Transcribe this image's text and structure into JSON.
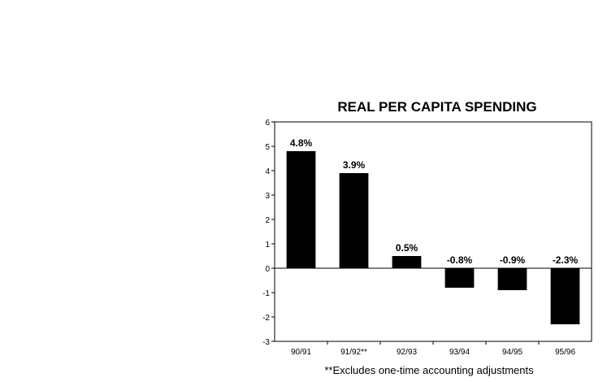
{
  "chart_data": {
    "type": "bar",
    "title": "REAL PER CAPITA SPENDING",
    "categories": [
      "90/91",
      "91/92**",
      "92/93",
      "93/94",
      "94/95",
      "95/96"
    ],
    "values": [
      4.8,
      3.9,
      0.5,
      -0.8,
      -0.9,
      -2.3
    ],
    "data_labels": [
      "4.8%",
      "3.9%",
      "0.5%",
      "-0.8%",
      "-0.9%",
      "-2.3%"
    ],
    "y_ticks": [
      "-3",
      "-2",
      "-1",
      "0",
      "1",
      "2",
      "3",
      "4",
      "5",
      "6"
    ],
    "ylim": [
      -3,
      6
    ],
    "xlabel": "",
    "ylabel": "",
    "grid": false,
    "bar_color": "#000000",
    "footnote": "**Excludes one-time accounting adjustments"
  }
}
